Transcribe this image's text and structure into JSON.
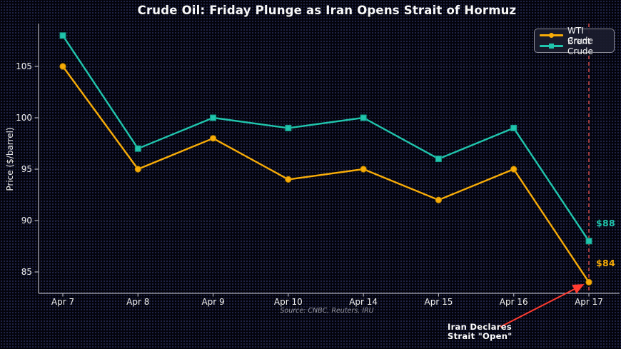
{
  "chart_data": {
    "type": "line",
    "title": "Crude Oil: Friday Plunge as Iran Opens Strait of Hormuz",
    "xlabel": "",
    "ylabel": "Price ($/barrel)",
    "categories": [
      "Apr 7",
      "Apr 8",
      "Apr 9",
      "Apr 10",
      "Apr 14",
      "Apr 15",
      "Apr 16",
      "Apr 17"
    ],
    "series": [
      {
        "name": "WTI Crude",
        "color": "#f7ac08",
        "edge_color": "#c88c00",
        "marker": "circle",
        "values": [
          105,
          95,
          98,
          94,
          95,
          92,
          95,
          84
        ]
      },
      {
        "name": "Brent Crude",
        "color": "#20c5ad",
        "edge_color": "#149a87",
        "marker": "square",
        "values": [
          108,
          97,
          100,
          99,
          100,
          96,
          99,
          88
        ]
      }
    ],
    "ylim": [
      83,
      109
    ],
    "yticks": [
      85,
      90,
      95,
      100,
      105
    ],
    "grid": "faint horizontal dashed lines at y ticks",
    "legend_position": "upper right",
    "axis_color": "#aeaeb8",
    "tick_label_color": "#f0f0f0",
    "event_line": {
      "category": "Apr 17",
      "color": "#b04040",
      "style": "dashed"
    },
    "annotations": {
      "brent_end_price": {
        "text": "$88",
        "color": "#20c5ad"
      },
      "wti_end_price": {
        "text": "$84",
        "color": "#f7ac08"
      },
      "event_note": {
        "line1": "Iran Declares",
        "line2": "Strait \"Open\"",
        "arrow_color": "#ff3b30"
      }
    },
    "source": "Source: CNBC, Reuters, IRU"
  }
}
